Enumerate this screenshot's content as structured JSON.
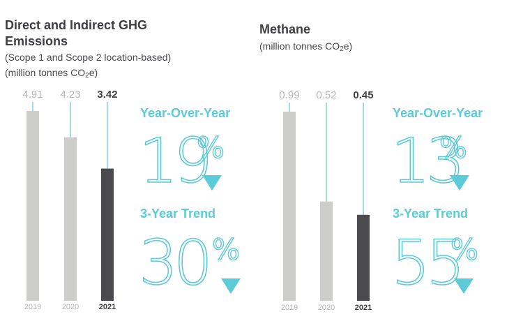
{
  "panels": {
    "ghg": {
      "title_line1": "Direct and Indirect GHG",
      "title_line2": "Emissions",
      "subtitle_line1": "(Scope 1 and Scope 2 location-based)",
      "subtitle_line2_pre": "(million tonnes CO",
      "subtitle_line2_sub": "2",
      "subtitle_line2_post": "e)",
      "yoy_label": "Year-Over-Year",
      "yoy_value": "19",
      "trend_label": "3-Year Trend",
      "trend_value": "30",
      "percent_sign": "%"
    },
    "methane": {
      "title_line1": "Methane",
      "subtitle_line1_pre": "(million tonnes CO",
      "subtitle_line1_sub": "2",
      "subtitle_line1_post": "e)",
      "yoy_label": "Year-Over-Year",
      "yoy_value": "13",
      "trend_label": "3-Year Trend",
      "trend_value": "55",
      "percent_sign": "%"
    }
  },
  "colors": {
    "accent": "#5ccbd8",
    "bar_prior": "#cdcdcc",
    "bar_current": "#4b4b4f",
    "label_prior": "#b5b5b5",
    "label_current": "#3f3f43"
  },
  "chart_data": [
    {
      "type": "bar",
      "categories": [
        "2019",
        "2020",
        "2021"
      ],
      "values": [
        4.91,
        4.23,
        3.42
      ],
      "value_labels": [
        "4.91",
        "4.23",
        "3.42"
      ],
      "highlight_index": 2
    },
    {
      "type": "bar",
      "categories": [
        "2019",
        "2020",
        "2021"
      ],
      "values": [
        0.99,
        0.52,
        0.45
      ],
      "value_labels": [
        "0.99",
        "0.52",
        "0.45"
      ],
      "highlight_index": 2
    }
  ]
}
